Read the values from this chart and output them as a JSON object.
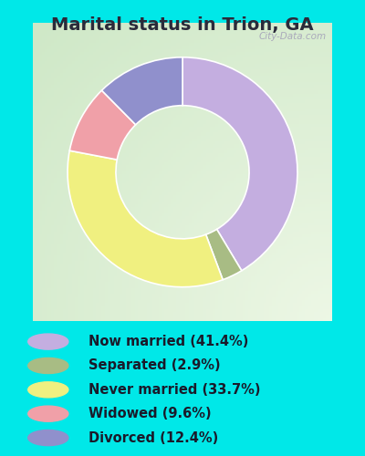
{
  "title": "Marital status in Trion, GA",
  "slices": [
    41.4,
    2.9,
    33.7,
    9.6,
    12.4
  ],
  "labels": [
    "Now married (41.4%)",
    "Separated (2.9%)",
    "Never married (33.7%)",
    "Widowed (9.6%)",
    "Divorced (12.4%)"
  ],
  "colors": [
    "#c4aee0",
    "#a8bc84",
    "#f0f080",
    "#f0a0a8",
    "#9090cc"
  ],
  "background_outer": "#00e8e8",
  "watermark": "City-Data.com",
  "title_fontsize": 14,
  "legend_fontsize": 10.5,
  "donut_width": 0.42,
  "start_angle": 90,
  "title_color": "#2a2a3a",
  "legend_text_color": "#1a1a2a"
}
